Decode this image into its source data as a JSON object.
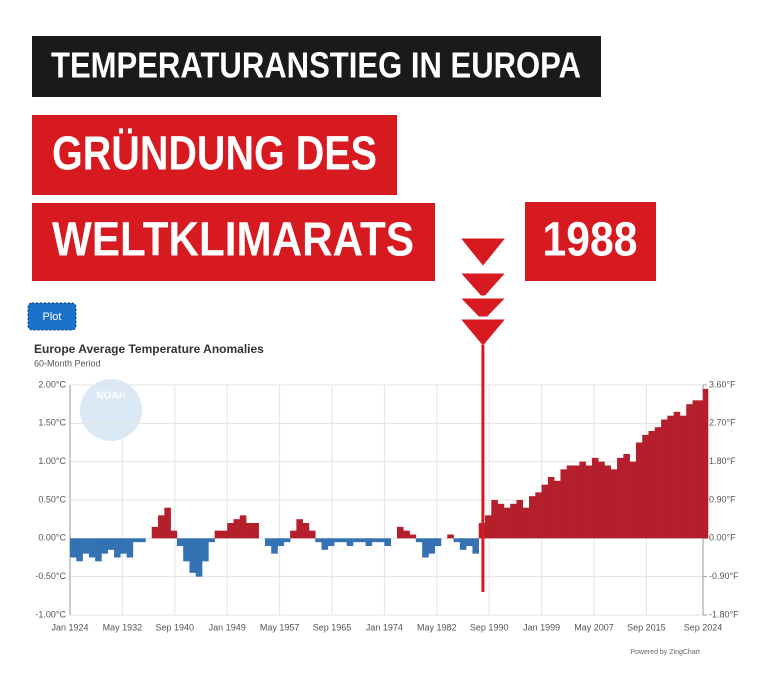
{
  "headline": "TEMPERATURANSTIEG IN EUROPA",
  "callout_lines": [
    "GRÜNDUNG DES",
    "WELTKLIMARATS"
  ],
  "callout_year": "1988",
  "button": "Plot",
  "logo_text": "NOAA",
  "credit": "Powered by ZingChart",
  "chart_data": {
    "type": "bar",
    "title": "Europe Average Temperature Anomalies",
    "subtitle": "60-Month Period",
    "marker_x": "1989-09",
    "x": [
      "1924-01",
      "1925-01",
      "1926-01",
      "1927-01",
      "1928-01",
      "1929-01",
      "1930-01",
      "1931-01",
      "1932-01",
      "1933-01",
      "1934-01",
      "1935-01",
      "1936-01",
      "1937-01",
      "1938-01",
      "1939-01",
      "1940-01",
      "1941-01",
      "1942-01",
      "1943-01",
      "1944-01",
      "1945-01",
      "1946-01",
      "1947-01",
      "1948-01",
      "1949-01",
      "1950-01",
      "1951-01",
      "1952-01",
      "1953-01",
      "1954-01",
      "1955-01",
      "1956-01",
      "1957-01",
      "1958-01",
      "1959-01",
      "1960-01",
      "1961-01",
      "1962-01",
      "1963-01",
      "1964-01",
      "1965-01",
      "1966-01",
      "1967-01",
      "1968-01",
      "1969-01",
      "1970-01",
      "1971-01",
      "1972-01",
      "1973-01",
      "1974-01",
      "1975-01",
      "1976-01",
      "1977-01",
      "1978-01",
      "1979-01",
      "1980-01",
      "1981-01",
      "1982-01",
      "1983-01",
      "1984-01",
      "1985-01",
      "1986-01",
      "1987-01",
      "1988-01",
      "1989-01",
      "1990-01",
      "1991-01",
      "1992-01",
      "1993-01",
      "1994-01",
      "1995-01",
      "1996-01",
      "1997-01",
      "1998-01",
      "1999-01",
      "2000-01",
      "2001-01",
      "2002-01",
      "2003-01",
      "2004-01",
      "2005-01",
      "2006-01",
      "2007-01",
      "2008-01",
      "2009-01",
      "2010-01",
      "2011-01",
      "2012-01",
      "2013-01",
      "2014-01",
      "2015-01",
      "2016-01",
      "2017-01",
      "2018-01",
      "2019-01",
      "2020-01",
      "2021-01",
      "2022-01",
      "2023-01",
      "2024-09"
    ],
    "values": [
      -0.25,
      -0.3,
      -0.2,
      -0.25,
      -0.3,
      -0.2,
      -0.15,
      -0.25,
      -0.2,
      -0.25,
      -0.05,
      -0.05,
      0.0,
      0.15,
      0.3,
      0.4,
      0.1,
      -0.1,
      -0.3,
      -0.45,
      -0.5,
      -0.3,
      -0.05,
      0.1,
      0.1,
      0.2,
      0.25,
      0.3,
      0.2,
      0.2,
      0.0,
      -0.1,
      -0.2,
      -0.1,
      -0.05,
      0.1,
      0.25,
      0.2,
      0.1,
      -0.05,
      -0.15,
      -0.1,
      -0.05,
      -0.05,
      -0.1,
      -0.05,
      -0.05,
      -0.1,
      -0.05,
      -0.05,
      -0.1,
      0.0,
      0.15,
      0.1,
      0.05,
      -0.05,
      -0.25,
      -0.2,
      -0.1,
      0.0,
      0.05,
      -0.05,
      -0.15,
      -0.1,
      -0.2,
      0.2,
      0.3,
      0.5,
      0.45,
      0.4,
      0.45,
      0.5,
      0.4,
      0.55,
      0.6,
      0.7,
      0.8,
      0.75,
      0.9,
      0.95,
      0.95,
      1.0,
      0.95,
      1.05,
      1.0,
      0.95,
      0.9,
      1.05,
      1.1,
      1.0,
      1.25,
      1.35,
      1.4,
      1.45,
      1.55,
      1.6,
      1.65,
      1.6,
      1.75,
      1.8,
      1.95
    ],
    "positive_color": "#b51f2c",
    "negative_color": "#3472b4",
    "xlim": [
      "1924-01",
      "2024-09"
    ],
    "xticks": [
      {
        "value": "1924-01",
        "label": "Jan 1924"
      },
      {
        "value": "1932-05",
        "label": "May 1932"
      },
      {
        "value": "1940-09",
        "label": "Sep 1940"
      },
      {
        "value": "1949-01",
        "label": "Jan 1949"
      },
      {
        "value": "1957-05",
        "label": "May 1957"
      },
      {
        "value": "1965-09",
        "label": "Sep 1965"
      },
      {
        "value": "1974-01",
        "label": "Jan 1974"
      },
      {
        "value": "1982-05",
        "label": "May 1982"
      },
      {
        "value": "1990-09",
        "label": "Sep 1990"
      },
      {
        "value": "1999-01",
        "label": "Jan 1999"
      },
      {
        "value": "2007-05",
        "label": "May 2007"
      },
      {
        "value": "2015-09",
        "label": "Sep 2015"
      },
      {
        "value": "2024-09",
        "label": "Sep 2024"
      }
    ],
    "ylim": [
      -1,
      2
    ],
    "yticks": [
      {
        "value": 2,
        "label": "2.00°C"
      },
      {
        "value": 1.5,
        "label": "1.50°C"
      },
      {
        "value": 1,
        "label": "1.00°C"
      },
      {
        "value": 0.5,
        "label": "0.50°C"
      },
      {
        "value": 0,
        "label": "0.00°C"
      },
      {
        "value": -0.5,
        "label": "-0.50°C"
      },
      {
        "value": -1,
        "label": "-1.00°C"
      }
    ],
    "y2lim": [
      -1.8,
      3.6
    ],
    "y2ticks": [
      {
        "value": 3.6,
        "label": "3.60°F"
      },
      {
        "value": 2.7,
        "label": "2.70°F"
      },
      {
        "value": 1.8,
        "label": "1.80°F"
      },
      {
        "value": 0.9,
        "label": "0.90°F"
      },
      {
        "value": 0,
        "label": "0.00°F"
      },
      {
        "value": -0.9,
        "label": "-0.90°F"
      },
      {
        "value": -1.8,
        "label": "-1.80°F"
      }
    ],
    "grid": true
  }
}
